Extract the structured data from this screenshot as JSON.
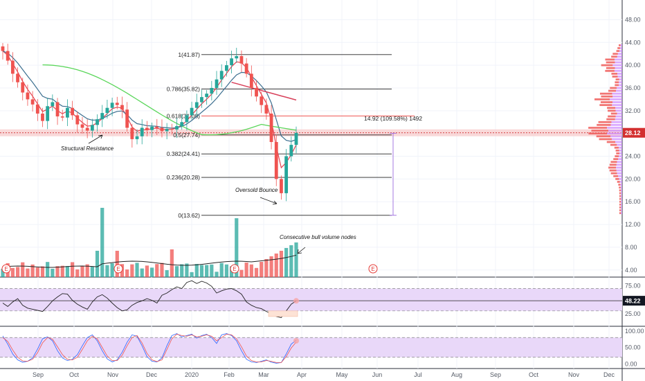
{
  "colors": {
    "up": "#26a69a",
    "down": "#ef5350",
    "ema_fast": "#e5404f",
    "ema_slow": "#3b6e8f",
    "ma_long": "#5ad65a",
    "ma_long2": "#d8405a",
    "fib_line": "#222222",
    "price_badge": "#d32f2f",
    "rsi_badge": "#131722",
    "band_fill": "#e9d8f9",
    "measure": "#9c6ade",
    "rsi_line": "#222222",
    "stoch_k": "#2962ff",
    "stoch_d": "#ef5350",
    "earnings": "#e53935"
  },
  "chart_data": [
    {
      "type": "candlestick",
      "title": "",
      "x_ticks": [
        "Sep",
        "Oct",
        "Nov",
        "Dec",
        "2020",
        "Feb",
        "Mar",
        "Apr",
        "May",
        "Jun",
        "Jul",
        "Aug",
        "Sep",
        "Oct",
        "Nov",
        "Dec"
      ],
      "y_ticks": [
        "48.00",
        "44.00",
        "40.00",
        "36.00",
        "32.00",
        "28.00",
        "24.00",
        "20.00",
        "16.00",
        "12.00",
        "8.00",
        "4.00"
      ],
      "ylim": [
        3,
        50
      ],
      "last_price": "28.12",
      "close_weekly": [
        42.5,
        40.8,
        38.5,
        37.0,
        35.2,
        34.0,
        33.1,
        31.5,
        30.2,
        32.8,
        33.5,
        31.0,
        30.8,
        32.5,
        31.2,
        29.6,
        29.0,
        28.5,
        29.5,
        30.5,
        31.6,
        32.5,
        33.4,
        33.0,
        32.2,
        29.0,
        27.0,
        27.5,
        29.0,
        28.6,
        29.2,
        29.0,
        28.4,
        28.8,
        28.7,
        29.3,
        30.0,
        31.2,
        32.5,
        33.5,
        34.4,
        35.0,
        36.0,
        37.5,
        39.0,
        40.0,
        41.2,
        41.6,
        40.3,
        38.5,
        36.0,
        34.5,
        33.0,
        31.5,
        26.5,
        20.0,
        17.5,
        24.0,
        26.0,
        28.1
      ],
      "fib_levels": [
        {
          "label": "1(41.87)",
          "price": 41.87
        },
        {
          "label": "0.786(35.82)",
          "price": 35.82
        },
        {
          "label": "0.618(31.08)",
          "price": 31.08
        },
        {
          "label": "0.5(27.74)",
          "price": 27.74
        },
        {
          "label": "0.382(24.41)",
          "price": 24.41
        },
        {
          "label": "0.236(20.28)",
          "price": 20.28
        },
        {
          "label": "0(13.62)",
          "price": 13.62
        }
      ],
      "measure_label": "14.92 (109.58%) 1492",
      "annotations": [
        "Structural Resistance",
        "Oversold Bounce",
        "Consecutive  bull volume nodes"
      ],
      "earnings_marker": "E"
    },
    {
      "type": "line",
      "title": "",
      "y_ticks": [
        "75.00",
        "50.00",
        "25.00"
      ],
      "ylim": [
        5,
        88
      ],
      "band": [
        30,
        70
      ],
      "last_value": "48.22",
      "values": [
        44,
        38,
        46,
        52,
        40,
        35,
        33,
        31,
        29,
        38,
        48,
        55,
        61,
        60,
        49,
        42,
        37,
        33,
        46,
        55,
        59,
        53,
        44,
        36,
        30,
        32,
        40,
        45,
        48,
        52,
        49,
        44,
        58,
        62,
        68,
        73,
        70,
        81,
        84,
        79,
        83,
        80,
        74,
        62,
        66,
        69,
        70,
        66,
        60,
        46,
        40,
        36,
        34,
        29,
        25,
        20,
        18,
        30,
        42,
        48
      ]
    },
    {
      "type": "line",
      "title": "",
      "y_ticks": [
        "100.00",
        "50.00",
        "0.00"
      ],
      "ylim": [
        -10,
        110
      ],
      "band": [
        20,
        80
      ],
      "k_values": [
        85,
        60,
        30,
        12,
        5,
        8,
        18,
        45,
        76,
        82,
        70,
        40,
        18,
        10,
        14,
        28,
        55,
        80,
        88,
        70,
        40,
        15,
        6,
        12,
        35,
        66,
        88,
        84,
        55,
        22,
        8,
        6,
        18,
        55,
        86,
        92,
        82,
        86,
        90,
        78,
        86,
        90,
        80,
        62,
        88,
        92,
        86,
        70,
        40,
        14,
        6,
        4,
        8,
        12,
        5,
        2,
        4,
        30,
        60,
        72
      ],
      "d_values": [
        80,
        68,
        42,
        20,
        9,
        8,
        14,
        34,
        64,
        80,
        75,
        52,
        28,
        14,
        12,
        20,
        44,
        70,
        84,
        76,
        50,
        24,
        10,
        10,
        26,
        55,
        80,
        86,
        64,
        32,
        12,
        7,
        12,
        44,
        76,
        90,
        86,
        84,
        88,
        82,
        84,
        88,
        84,
        70,
        80,
        90,
        88,
        76,
        52,
        24,
        10,
        6,
        6,
        10,
        8,
        4,
        4,
        22,
        48,
        66
      ]
    }
  ]
}
